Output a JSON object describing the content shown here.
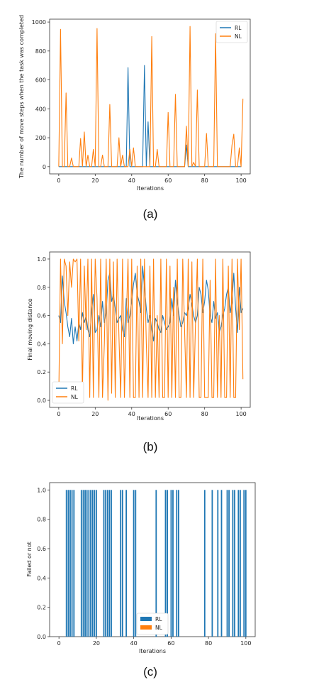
{
  "colors": {
    "rl": "#1f77b4",
    "nl": "#ff7f0e",
    "axis": "#333333",
    "text": "#222222"
  },
  "chart_data": [
    {
      "type": "line",
      "caption": "(a)",
      "xlabel": "Iterations",
      "ylabel": "The number of move steps when the task was completed",
      "xlim": [
        -5,
        105
      ],
      "ylim": [
        -50,
        1020
      ],
      "xticks": [
        0,
        20,
        40,
        60,
        80,
        100
      ],
      "yticks": [
        0,
        200,
        400,
        600,
        800,
        1000
      ],
      "legend_position": "top-right",
      "series": [
        {
          "name": "RL",
          "color": "#1f77b4",
          "x": [
            0,
            37,
            38,
            39,
            46,
            47,
            48,
            49,
            50,
            69,
            70,
            71,
            100
          ],
          "y": [
            0,
            0,
            685,
            0,
            0,
            700,
            0,
            310,
            0,
            0,
            150,
            0,
            0
          ]
        },
        {
          "name": "NL",
          "color": "#ff7f0e",
          "x": [
            0,
            1,
            2,
            3,
            4,
            5,
            6,
            7,
            8,
            9,
            10,
            11,
            12,
            13,
            14,
            15,
            16,
            17,
            18,
            19,
            20,
            21,
            22,
            23,
            24,
            25,
            26,
            27,
            28,
            29,
            30,
            31,
            32,
            33,
            34,
            35,
            36,
            37,
            38,
            39,
            40,
            41,
            42,
            43,
            44,
            45,
            46,
            47,
            48,
            49,
            50,
            51,
            52,
            53,
            54,
            55,
            56,
            57,
            58,
            59,
            60,
            61,
            62,
            63,
            64,
            65,
            66,
            67,
            68,
            69,
            70,
            71,
            72,
            73,
            74,
            75,
            76,
            77,
            78,
            79,
            80,
            81,
            82,
            83,
            84,
            85,
            86,
            87,
            88,
            89,
            90,
            91,
            92,
            93,
            94,
            95,
            96,
            97,
            98,
            99,
            100,
            101
          ],
          "y": [
            0,
            950,
            0,
            0,
            510,
            0,
            0,
            60,
            0,
            0,
            0,
            0,
            195,
            0,
            240,
            0,
            80,
            0,
            0,
            120,
            0,
            955,
            0,
            0,
            80,
            0,
            0,
            0,
            430,
            0,
            0,
            0,
            0,
            200,
            0,
            80,
            0,
            0,
            0,
            120,
            0,
            130,
            0,
            0,
            0,
            0,
            0,
            0,
            0,
            0,
            0,
            900,
            0,
            0,
            120,
            0,
            0,
            0,
            0,
            0,
            375,
            0,
            0,
            0,
            500,
            0,
            0,
            0,
            0,
            0,
            280,
            0,
            970,
            0,
            30,
            0,
            530,
            0,
            0,
            0,
            0,
            230,
            0,
            0,
            0,
            0,
            920,
            0,
            0,
            0,
            0,
            0,
            0,
            0,
            0,
            150,
            225,
            0,
            0,
            130,
            0,
            470
          ]
        }
      ]
    },
    {
      "type": "line",
      "caption": "(b)",
      "xlabel": "Iterations",
      "ylabel": "Final moving distance",
      "xlim": [
        -5,
        105
      ],
      "ylim": [
        -0.05,
        1.05
      ],
      "xticks": [
        0,
        20,
        40,
        60,
        80,
        100
      ],
      "yticks": [
        0.0,
        0.2,
        0.4,
        0.6,
        0.8,
        1.0
      ],
      "legend_position": "bottom-left",
      "series": [
        {
          "name": "RL",
          "color": "#1f77b4",
          "x": [
            0,
            1,
            2,
            3,
            4,
            5,
            6,
            7,
            8,
            9,
            10,
            11,
            12,
            13,
            14,
            15,
            16,
            17,
            18,
            19,
            20,
            21,
            22,
            23,
            24,
            25,
            26,
            27,
            28,
            29,
            30,
            31,
            32,
            33,
            34,
            35,
            36,
            37,
            38,
            39,
            40,
            41,
            42,
            43,
            44,
            45,
            46,
            47,
            48,
            49,
            50,
            51,
            52,
            53,
            54,
            55,
            56,
            57,
            58,
            59,
            60,
            61,
            62,
            63,
            64,
            65,
            66,
            67,
            68,
            69,
            70,
            71,
            72,
            73,
            74,
            75,
            76,
            77,
            78,
            79,
            80,
            81,
            82,
            83,
            84,
            85,
            86,
            87,
            88,
            89,
            90,
            91,
            92,
            93,
            94,
            95,
            96,
            97,
            98,
            99,
            100,
            101
          ],
          "y": [
            0.6,
            0.55,
            0.88,
            0.7,
            0.62,
            0.52,
            0.45,
            0.58,
            0.4,
            0.52,
            0.42,
            0.55,
            0.5,
            0.62,
            0.55,
            0.6,
            0.5,
            0.45,
            0.63,
            0.75,
            0.48,
            0.5,
            0.6,
            0.52,
            0.7,
            0.55,
            0.62,
            0.85,
            0.9,
            0.7,
            0.75,
            0.65,
            0.55,
            0.58,
            0.6,
            0.5,
            0.45,
            0.72,
            0.55,
            0.6,
            0.7,
            0.82,
            0.9,
            0.75,
            0.7,
            0.62,
            0.95,
            0.8,
            0.65,
            0.55,
            0.6,
            0.5,
            0.42,
            0.58,
            0.55,
            0.5,
            0.48,
            0.6,
            0.55,
            0.5,
            0.52,
            0.55,
            0.72,
            0.6,
            0.85,
            0.7,
            0.6,
            0.52,
            0.55,
            0.62,
            0.6,
            0.65,
            0.75,
            0.68,
            0.6,
            0.55,
            0.6,
            0.8,
            0.75,
            0.62,
            0.7,
            0.85,
            0.78,
            0.6,
            0.55,
            0.7,
            0.58,
            0.62,
            0.48,
            0.52,
            0.6,
            0.65,
            0.75,
            0.8,
            0.62,
            0.7,
            0.9,
            0.65,
            0.48,
            0.8,
            0.62,
            0.65
          ]
        },
        {
          "name": "NL",
          "color": "#ff7f0e",
          "x": [
            0,
            1,
            2,
            3,
            4,
            5,
            6,
            7,
            8,
            9,
            10,
            11,
            12,
            13,
            14,
            15,
            16,
            17,
            18,
            19,
            20,
            21,
            22,
            23,
            24,
            25,
            26,
            27,
            28,
            29,
            30,
            31,
            32,
            33,
            34,
            35,
            36,
            37,
            38,
            39,
            40,
            41,
            42,
            43,
            44,
            45,
            46,
            47,
            48,
            49,
            50,
            51,
            52,
            53,
            54,
            55,
            56,
            57,
            58,
            59,
            60,
            61,
            62,
            63,
            64,
            65,
            66,
            67,
            68,
            69,
            70,
            71,
            72,
            73,
            74,
            75,
            76,
            77,
            78,
            79,
            80,
            81,
            82,
            83,
            84,
            85,
            86,
            87,
            88,
            89,
            90,
            91,
            92,
            93,
            94,
            95,
            96,
            97,
            98,
            99,
            100,
            101
          ],
          "y": [
            0.02,
            1.0,
            0.4,
            1.0,
            0.95,
            0.6,
            0.98,
            0.8,
            1.0,
            0.98,
            1.0,
            0.42,
            1.0,
            0.05,
            0.95,
            0.5,
            1.0,
            0.02,
            1.0,
            0.02,
            1.0,
            0.72,
            0.02,
            1.0,
            0.02,
            0.4,
            1.0,
            0.0,
            1.0,
            0.05,
            0.98,
            0.02,
            1.0,
            0.45,
            0.02,
            1.0,
            0.02,
            0.55,
            1.0,
            0.02,
            1.0,
            0.02,
            0.02,
            0.95,
            0.02,
            1.0,
            0.02,
            1.0,
            0.4,
            0.02,
            0.95,
            0.02,
            1.0,
            0.02,
            0.6,
            0.02,
            1.0,
            0.02,
            0.02,
            1.0,
            0.02,
            0.95,
            0.02,
            0.8,
            0.02,
            1.0,
            0.02,
            0.02,
            1.0,
            0.5,
            0.02,
            1.0,
            0.02,
            0.98,
            0.02,
            0.55,
            1.0,
            0.02,
            0.02,
            1.0,
            0.02,
            0.02,
            0.02,
            0.85,
            0.02,
            0.02,
            1.0,
            0.02,
            0.6,
            0.02,
            1.0,
            0.02,
            0.02,
            0.95,
            0.02,
            1.0,
            0.02,
            0.02,
            1.0,
            0.5,
            1.0,
            0.15
          ]
        }
      ]
    },
    {
      "type": "bar",
      "caption": "(c)",
      "xlabel": "Iterations",
      "ylabel": "Failed or not",
      "xlim": [
        -5,
        105
      ],
      "ylim": [
        0,
        1.05
      ],
      "xticks": [
        0,
        20,
        40,
        60,
        80,
        100
      ],
      "yticks": [
        0.0,
        0.2,
        0.4,
        0.6,
        0.8,
        1.0
      ],
      "legend_position": "lower-center",
      "series": [
        {
          "name": "RL",
          "color": "#1f77b4",
          "x": [
            4,
            5,
            6,
            7,
            8,
            12,
            13,
            14,
            15,
            16,
            17,
            18,
            19,
            20,
            24,
            25,
            26,
            27,
            28,
            33,
            34,
            36,
            40,
            41,
            52,
            57,
            58,
            60,
            61,
            63,
            64,
            78,
            82,
            85,
            87,
            90,
            91,
            93,
            94,
            96,
            97,
            99,
            100
          ],
          "y": [
            1,
            1,
            1,
            1,
            1,
            1,
            1,
            1,
            1,
            1,
            1,
            1,
            1,
            1,
            1,
            1,
            1,
            1,
            1,
            1,
            1,
            1,
            1,
            1,
            1,
            1,
            1,
            1,
            1,
            1,
            1,
            1,
            1,
            1,
            1,
            1,
            1,
            1,
            1,
            1,
            1,
            1,
            1
          ]
        },
        {
          "name": "NL",
          "color": "#ff7f0e",
          "x": [],
          "y": []
        }
      ]
    }
  ]
}
